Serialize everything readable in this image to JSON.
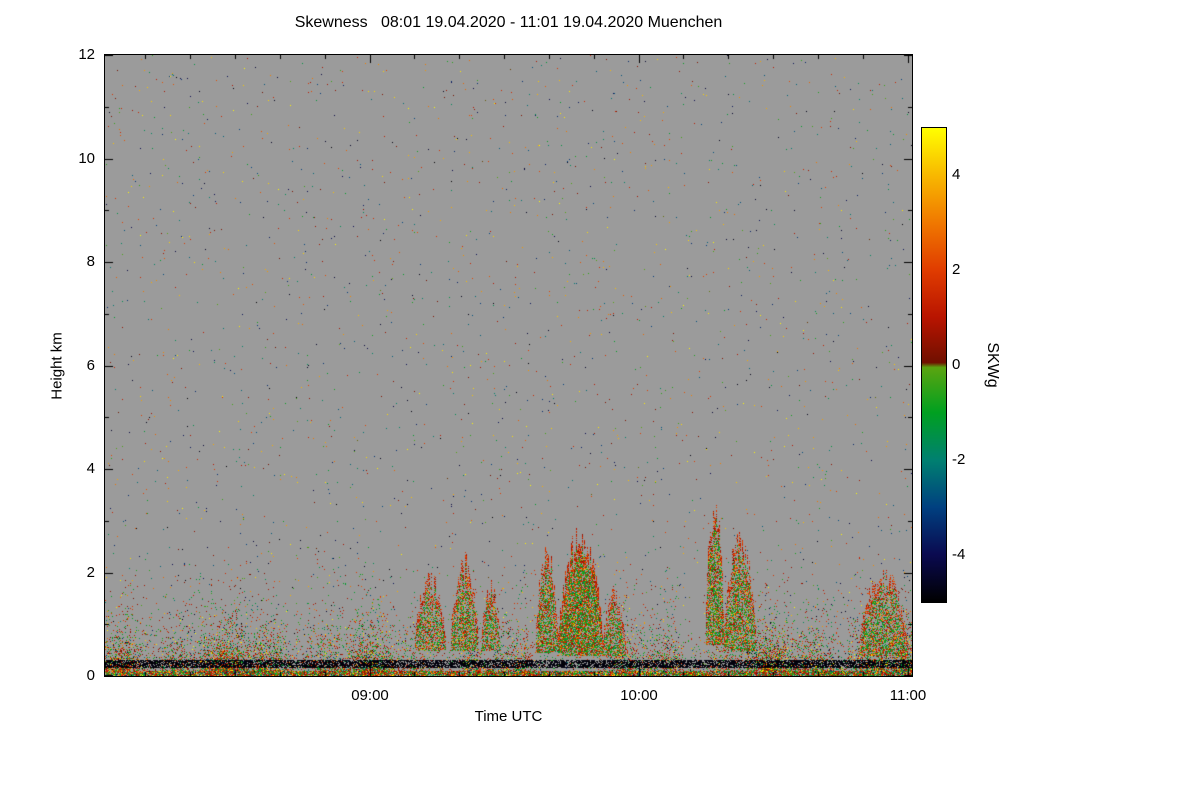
{
  "chart_data": {
    "type": "heatmap",
    "title": "Skewness   08:01 19.04.2020 - 11:01 19.04.2020 Muenchen",
    "xlabel": "Time UTC",
    "ylabel": "Height km",
    "x_range": [
      "08:01",
      "11:01"
    ],
    "x_total_minutes": 180,
    "x_ticks": [
      "09:00",
      "10:00",
      "11:00"
    ],
    "x_tick_minutes": [
      59,
      119,
      179
    ],
    "y_range": [
      0,
      12
    ],
    "y_ticks": [
      0,
      2,
      4,
      6,
      8,
      10,
      12
    ],
    "grid": false,
    "no_data_color": "#9b9b9b",
    "colorbar": {
      "label": "SKWg",
      "min": -5,
      "max": 5,
      "ticks": [
        4,
        2,
        0,
        -2,
        -4
      ],
      "stops": [
        {
          "v": -5,
          "color": "#000000"
        },
        {
          "v": -4,
          "color": "#0a0a50"
        },
        {
          "v": -3,
          "color": "#004080"
        },
        {
          "v": -2,
          "color": "#008070"
        },
        {
          "v": -1,
          "color": "#00a020"
        },
        {
          "v": -0.05,
          "color": "#5aa410"
        },
        {
          "v": 0.05,
          "color": "#701000"
        },
        {
          "v": 1,
          "color": "#b81400"
        },
        {
          "v": 2,
          "color": "#e03c00"
        },
        {
          "v": 3,
          "color": "#f07800"
        },
        {
          "v": 4,
          "color": "#f8b800"
        },
        {
          "v": 5,
          "color": "#ffff00"
        }
      ]
    },
    "noise_field": {
      "seed": 42,
      "sparse_count": 2600,
      "sparse_value_range": [
        -5,
        5
      ],
      "bl_scale_km": 0.42,
      "bl_max_height_km": 2.4,
      "ground_band_km": 0.1,
      "surface_line_km": [
        0.16,
        0.3
      ],
      "surface_line_density": 0.72,
      "surface_line_value": -4.7,
      "value_mix": {
        "pos_low": 0.4,
        "neg": 0.32,
        "pos_high": 0.14,
        "deep_neg": 0.08
      }
    },
    "features": [
      {
        "t0": 69,
        "t1": 76,
        "base": 0.5,
        "top": 1.9,
        "density": 0.5
      },
      {
        "t0": 77,
        "t1": 83,
        "base": 0.5,
        "top": 2.25,
        "density": 0.55
      },
      {
        "t0": 84,
        "t1": 88,
        "base": 0.5,
        "top": 1.75,
        "density": 0.5
      },
      {
        "t0": 96,
        "t1": 101,
        "base": 0.45,
        "top": 2.35,
        "density": 0.6
      },
      {
        "t0": 101,
        "t1": 111,
        "base": 0.4,
        "top": 2.65,
        "density": 0.75
      },
      {
        "t0": 111,
        "t1": 116,
        "base": 0.4,
        "top": 1.6,
        "density": 0.5
      },
      {
        "t0": 134,
        "t1": 138,
        "base": 0.6,
        "top": 3.25,
        "density": 0.6
      },
      {
        "t0": 138,
        "t1": 145,
        "base": 0.5,
        "top": 2.55,
        "density": 0.6
      },
      {
        "t0": 168,
        "t1": 179,
        "base": 0.4,
        "top": 1.95,
        "density": 0.5
      }
    ]
  }
}
